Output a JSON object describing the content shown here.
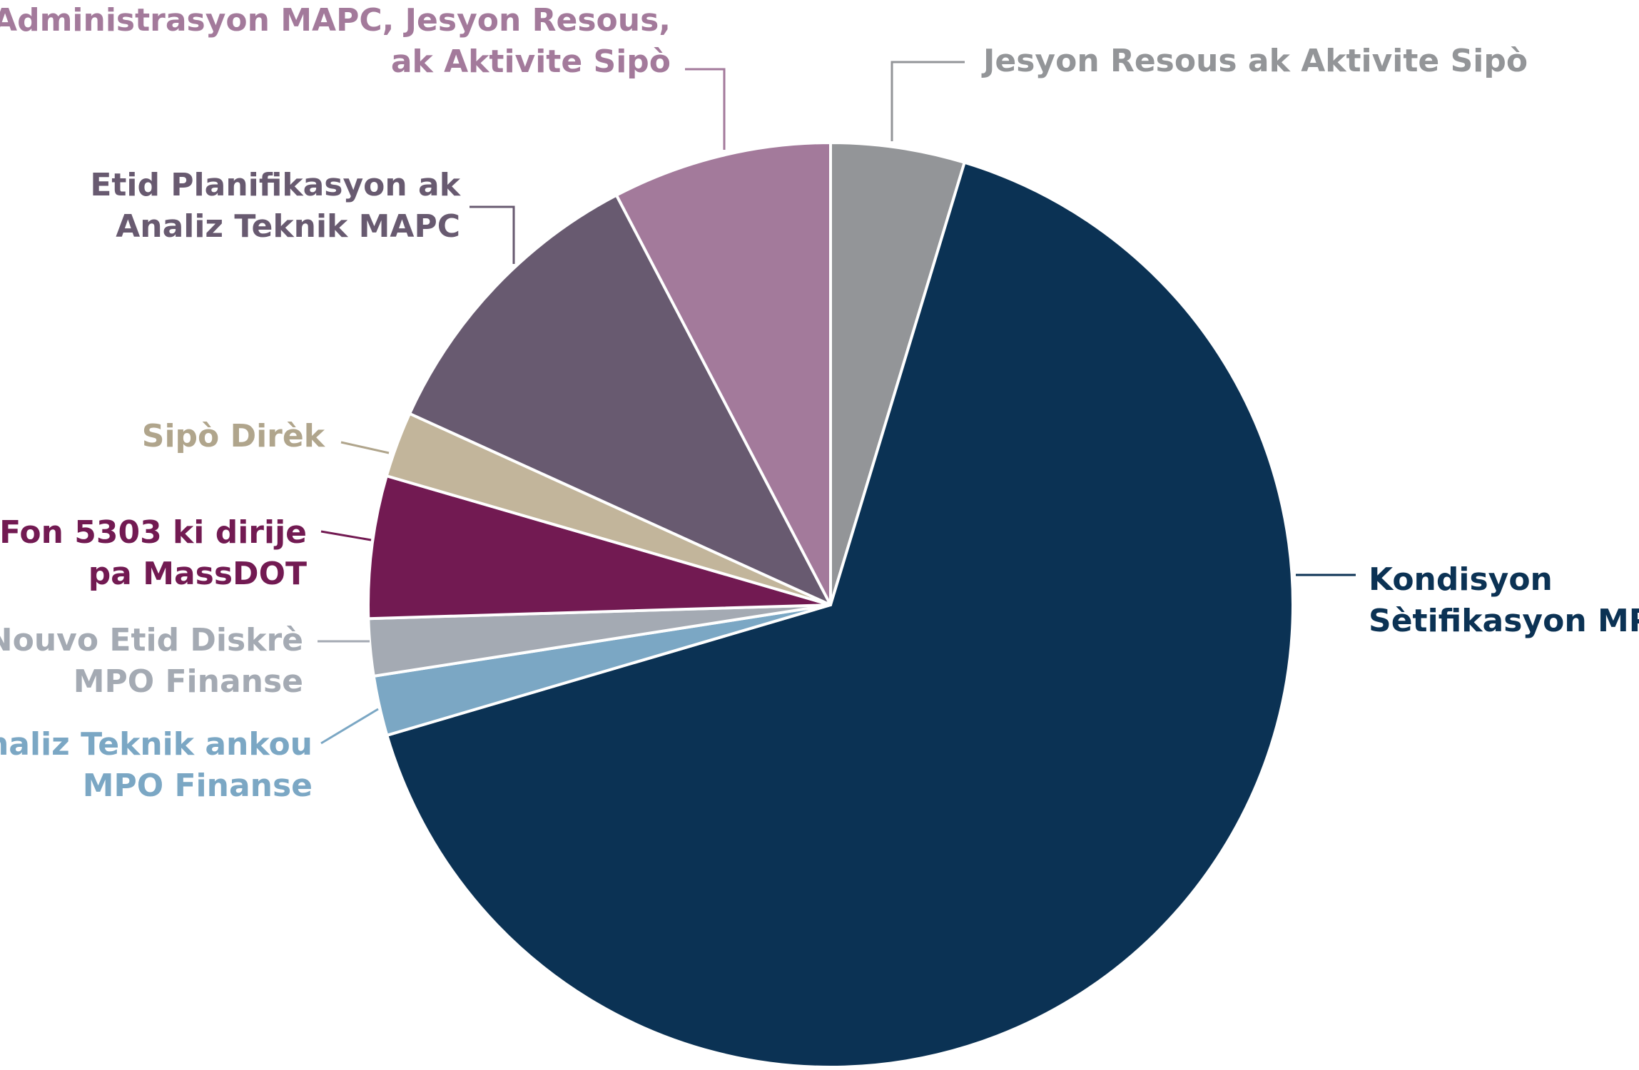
{
  "chart_data": {
    "type": "pie",
    "title": "",
    "start_angle_deg": 0,
    "direction": "clockwise",
    "slice_border_color": "#ffffff",
    "slices": [
      {
        "id": "jesyon-resous",
        "label_lines": [
          "Jesyon Resous ak Aktivite Sipò"
        ],
        "value": 4.7,
        "color": "#939598",
        "label_color": "#939598"
      },
      {
        "id": "kondisyon-setifikasyon",
        "label_lines": [
          "Kondisyon",
          "Sètifikasyon MPO"
        ],
        "value": 66.1,
        "color": "#0b3254",
        "label_color": "#0b3254"
      },
      {
        "id": "analiz-teknik-mpo",
        "label_lines": [
          "Analiz Teknik ankou",
          "MPO Finanse"
        ],
        "value": 2.1,
        "color": "#7ba7c4",
        "label_color": "#7ba7c4"
      },
      {
        "id": "nouvo-etid",
        "label_lines": [
          "Nouvo Etid Diskrè",
          "MPO Finanse"
        ],
        "value": 2.0,
        "color": "#a4aab3",
        "label_color": "#a4aab3"
      },
      {
        "id": "fon-5303",
        "label_lines": [
          "Fon 5303 ki dirije",
          "pa MassDOT"
        ],
        "value": 5.0,
        "color": "#721a52",
        "label_color": "#721a52"
      },
      {
        "id": "sipo-direk",
        "label_lines": [
          "Sipò Dirèk"
        ],
        "value": 2.3,
        "color": "#c2b59b",
        "label_color": "#b0a58c"
      },
      {
        "id": "etid-planifikasyon",
        "label_lines": [
          "Etid Planifikasyon ak",
          "Analiz Teknik MAPC"
        ],
        "value": 10.6,
        "color": "#685a70",
        "label_color": "#685a70"
      },
      {
        "id": "administrasyon-mapc",
        "label_lines": [
          "Administrasyon MAPC, Jesyon Resous,",
          "ak Aktivite Sipò"
        ],
        "value": 7.7,
        "color": "#a37a9b",
        "label_color": "#a37a9b"
      }
    ]
  }
}
